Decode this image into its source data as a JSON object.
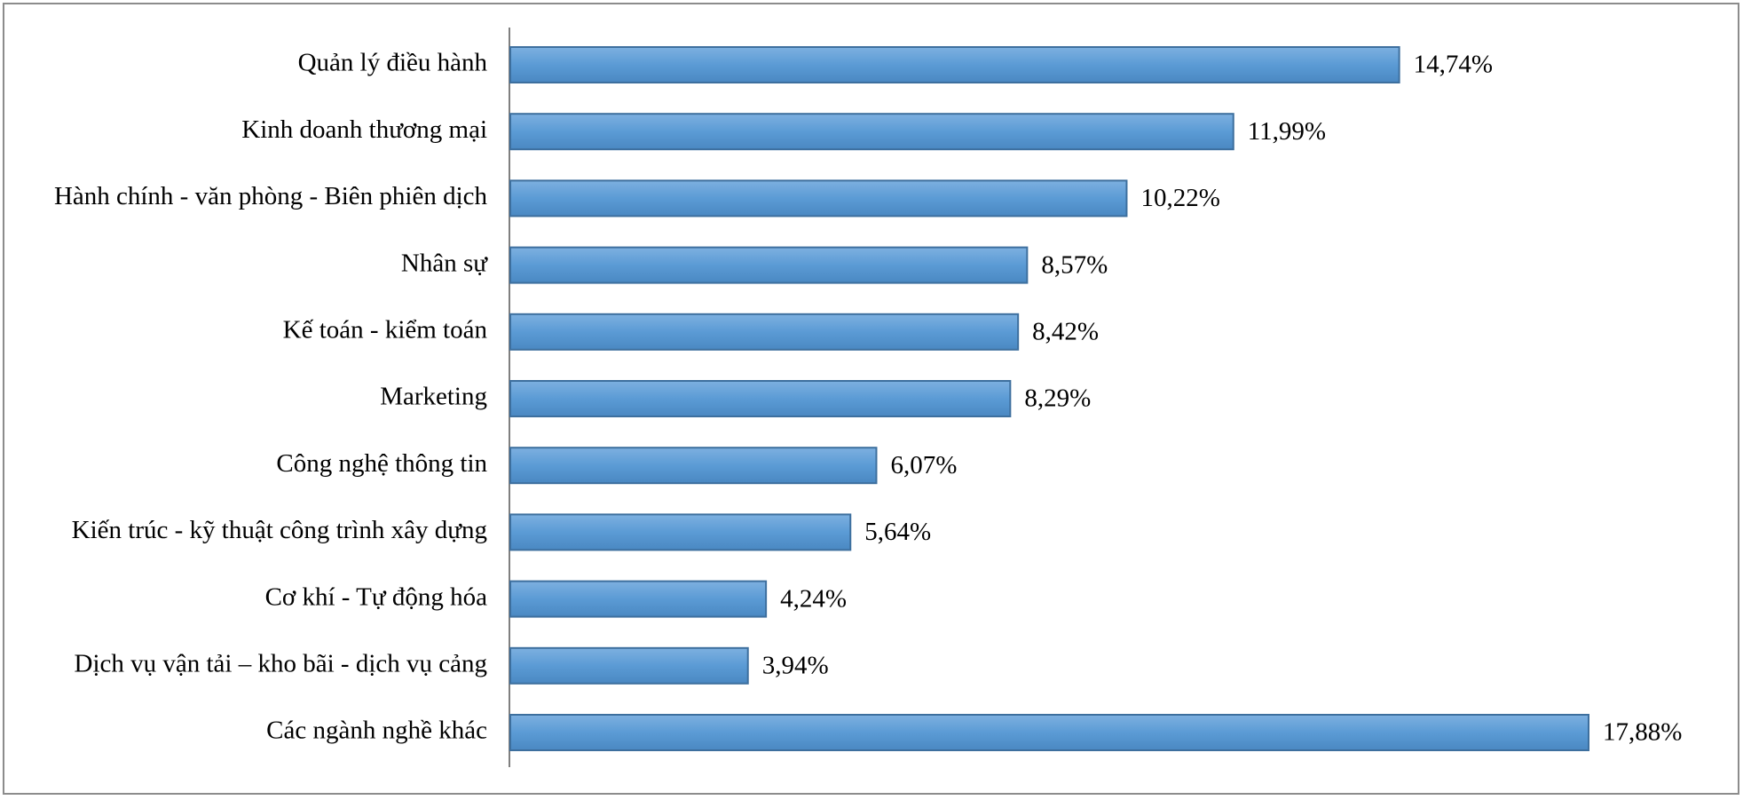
{
  "chart_data": {
    "type": "bar",
    "orientation": "horizontal",
    "categories": [
      "Quản lý điều hành",
      "Kinh doanh thương mại",
      "Hành chính - văn phòng - Biên phiên dịch",
      "Nhân sự",
      "Kế toán - kiểm toán",
      "Marketing",
      "Công nghệ thông tin",
      "Kiến trúc - kỹ thuật công trình xây dựng",
      "Cơ khí - Tự động hóa",
      "Dịch vụ vận tải – kho bãi - dịch vụ cảng",
      "Các ngành nghề khác"
    ],
    "values": [
      14.74,
      11.99,
      10.22,
      8.57,
      8.42,
      8.29,
      6.07,
      5.64,
      4.24,
      3.94,
      17.88
    ],
    "value_labels": [
      "14,74%",
      "11,99%",
      "10,22%",
      "8,57%",
      "8,42%",
      "8,29%",
      "6,07%",
      "5,64%",
      "4,24%",
      "3,94%",
      "17,88%"
    ],
    "color": "#5b9bd5"
  }
}
